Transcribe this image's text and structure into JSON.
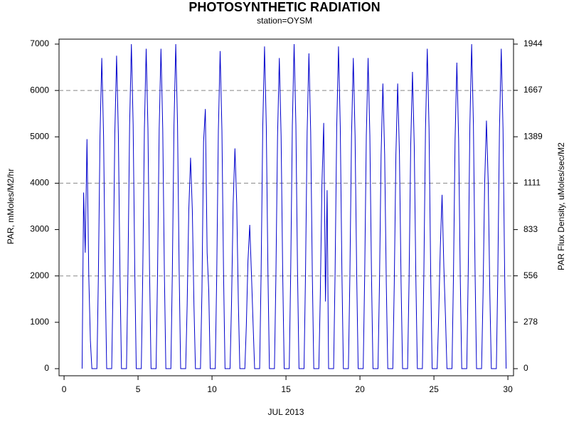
{
  "chart_data": {
    "type": "line",
    "title": "PHOTOSYNTHETIC RADIATION",
    "subtitle": "station=OYSM",
    "xlabel": "JUL 2013",
    "ylabel": "PAR, mMoles/M2/hr",
    "y2label": "PAR Flux Density, uMoles/sec/M2",
    "xlim": [
      -0.34,
      30.38
    ],
    "xticks": [
      0,
      5,
      10,
      15,
      20,
      25,
      30
    ],
    "ylim": [
      -153,
      7107
    ],
    "yticks": [
      0,
      1000,
      2000,
      3000,
      4000,
      5000,
      6000,
      7000
    ],
    "y2lim": [
      -42.5,
      1973.7
    ],
    "y2ticks": [
      0,
      278,
      556,
      833,
      1111,
      1389,
      1667,
      1944
    ],
    "grid": [
      2000,
      4000,
      6000
    ],
    "series": [
      {
        "name": "PAR",
        "color": "#0000cc",
        "x": [
          1.22,
          1.32,
          1.43,
          1.55,
          1.67,
          1.78,
          1.88,
          2.22,
          2.32,
          2.43,
          2.55,
          2.67,
          2.78,
          2.88,
          3.22,
          3.32,
          3.43,
          3.55,
          3.67,
          3.78,
          3.88,
          4.22,
          4.32,
          4.43,
          4.55,
          4.67,
          4.78,
          4.88,
          5.22,
          5.32,
          5.43,
          5.55,
          5.67,
          5.78,
          5.88,
          6.22,
          6.32,
          6.43,
          6.55,
          6.67,
          6.78,
          6.88,
          7.22,
          7.32,
          7.43,
          7.55,
          7.67,
          7.78,
          7.88,
          8.22,
          8.32,
          8.43,
          8.55,
          8.67,
          8.78,
          8.88,
          9.22,
          9.32,
          9.43,
          9.55,
          9.67,
          9.78,
          9.88,
          10.22,
          10.32,
          10.43,
          10.55,
          10.67,
          10.78,
          10.88,
          11.22,
          11.32,
          11.43,
          11.55,
          11.67,
          11.78,
          11.88,
          12.22,
          12.32,
          12.43,
          12.55,
          12.67,
          12.78,
          12.88,
          13.22,
          13.32,
          13.43,
          13.55,
          13.67,
          13.78,
          13.88,
          14.22,
          14.32,
          14.43,
          14.55,
          14.67,
          14.78,
          14.88,
          15.22,
          15.32,
          15.43,
          15.55,
          15.67,
          15.78,
          15.88,
          16.22,
          16.32,
          16.43,
          16.55,
          16.67,
          16.78,
          16.88,
          17.22,
          17.32,
          17.43,
          17.55,
          17.67,
          17.78,
          17.88,
          18.22,
          18.32,
          18.43,
          18.55,
          18.67,
          18.78,
          18.88,
          19.22,
          19.32,
          19.43,
          19.55,
          19.67,
          19.78,
          19.88,
          20.22,
          20.32,
          20.43,
          20.55,
          20.67,
          20.78,
          20.88,
          21.22,
          21.32,
          21.43,
          21.55,
          21.67,
          21.78,
          21.88,
          22.22,
          22.32,
          22.43,
          22.55,
          22.67,
          22.78,
          22.88,
          23.22,
          23.32,
          23.43,
          23.55,
          23.67,
          23.78,
          23.88,
          24.22,
          24.32,
          24.43,
          24.55,
          24.67,
          24.78,
          24.88,
          25.22,
          25.32,
          25.43,
          25.55,
          25.67,
          25.78,
          25.88,
          26.22,
          26.32,
          26.43,
          26.55,
          26.67,
          26.78,
          26.88,
          27.22,
          27.32,
          27.43,
          27.55,
          27.67,
          27.78,
          27.88,
          28.22,
          28.32,
          28.43,
          28.55,
          28.67,
          28.78,
          28.88,
          29.22,
          29.32,
          29.43,
          29.55,
          29.67,
          29.78,
          29.88
        ],
        "values": [
          0,
          3800,
          2500,
          4950,
          2000,
          600,
          0,
          0,
          2010,
          5025,
          6700,
          5025,
          2010,
          0,
          0,
          2025,
          5063,
          6750,
          5063,
          2025,
          0,
          0,
          2100,
          5250,
          7000,
          5250,
          2100,
          0,
          0,
          2070,
          5175,
          6900,
          5175,
          2070,
          0,
          0,
          2070,
          5175,
          6900,
          5175,
          2070,
          0,
          0,
          2100,
          5250,
          7000,
          5250,
          2100,
          0,
          0,
          1365,
          3413,
          4550,
          3413,
          1365,
          0,
          0,
          1680,
          4900,
          5600,
          2500,
          1680,
          0,
          0,
          2055,
          5138,
          6850,
          5138,
          2055,
          0,
          0,
          1425,
          3563,
          4750,
          3563,
          1425,
          0,
          0,
          930,
          2325,
          3100,
          2000,
          930,
          0,
          0,
          2085,
          5213,
          6950,
          5213,
          2085,
          0,
          0,
          2010,
          5025,
          6700,
          5025,
          2010,
          0,
          0,
          2100,
          5250,
          7000,
          5250,
          2100,
          0,
          0,
          2040,
          5100,
          6800,
          5100,
          2040,
          0,
          0,
          1590,
          3975,
          5300,
          1450,
          3850,
          0,
          0,
          2085,
          5213,
          6950,
          5213,
          2085,
          0,
          0,
          2010,
          5025,
          6700,
          5025,
          2010,
          0,
          0,
          2010,
          5025,
          6700,
          5025,
          2010,
          0,
          0,
          1845,
          4613,
          6150,
          4613,
          1845,
          0,
          0,
          1845,
          4613,
          6150,
          4613,
          1845,
          0,
          0,
          1920,
          4800,
          6400,
          4800,
          1920,
          0,
          0,
          2070,
          5175,
          6900,
          5175,
          2070,
          0,
          0,
          1125,
          2600,
          3750,
          2200,
          1125,
          0,
          0,
          1980,
          4950,
          6600,
          4950,
          1980,
          0,
          0,
          2100,
          5250,
          7000,
          5250,
          2100,
          0,
          0,
          1605,
          4013,
          5350,
          4013,
          1605,
          0,
          0,
          2070,
          5175,
          6900,
          5175,
          2070,
          0
        ]
      }
    ]
  }
}
